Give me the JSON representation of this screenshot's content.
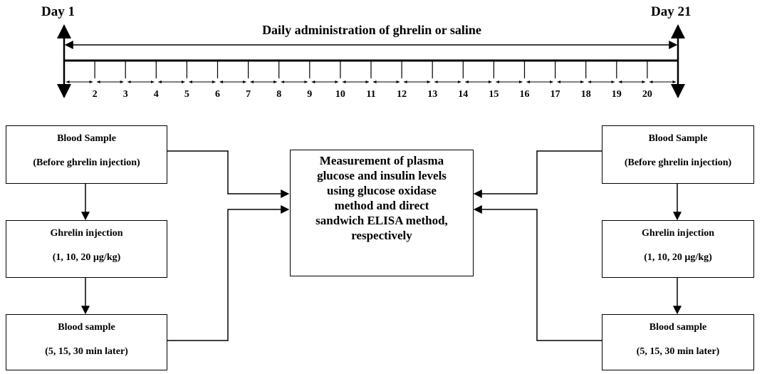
{
  "timeline": {
    "start_label": "Day 1",
    "end_label": "Day 21",
    "caption": "Daily administration of ghrelin or saline",
    "days": [
      "2",
      "3",
      "4",
      "5",
      "6",
      "7",
      "8",
      "9",
      "10",
      "11",
      "12",
      "13",
      "14",
      "15",
      "16",
      "17",
      "18",
      "19",
      "20"
    ]
  },
  "left": {
    "box1": {
      "line1": "Blood Sample",
      "line2": "(Before ghrelin injection)"
    },
    "box2": {
      "line1": "Ghrelin injection",
      "line2": "(1, 10, 20 µg/kg)"
    },
    "box3": {
      "line1": "Blood sample",
      "line2": "(5, 15, 30 min later)"
    }
  },
  "right": {
    "box1": {
      "line1": "Blood Sample",
      "line2": "(Before ghrelin injection)"
    },
    "box2": {
      "line1": "Ghrelin injection",
      "line2": "(1, 10, 20 µg/kg)"
    },
    "box3": {
      "line1": "Blood sample",
      "line2": "(5, 15, 30 min later)"
    }
  },
  "center": {
    "lines": [
      "Measurement of plasma",
      "glucose and insulin levels",
      "using glucose oxidase",
      "method and direct",
      "sandwich ELISA method,",
      "respectively"
    ]
  }
}
